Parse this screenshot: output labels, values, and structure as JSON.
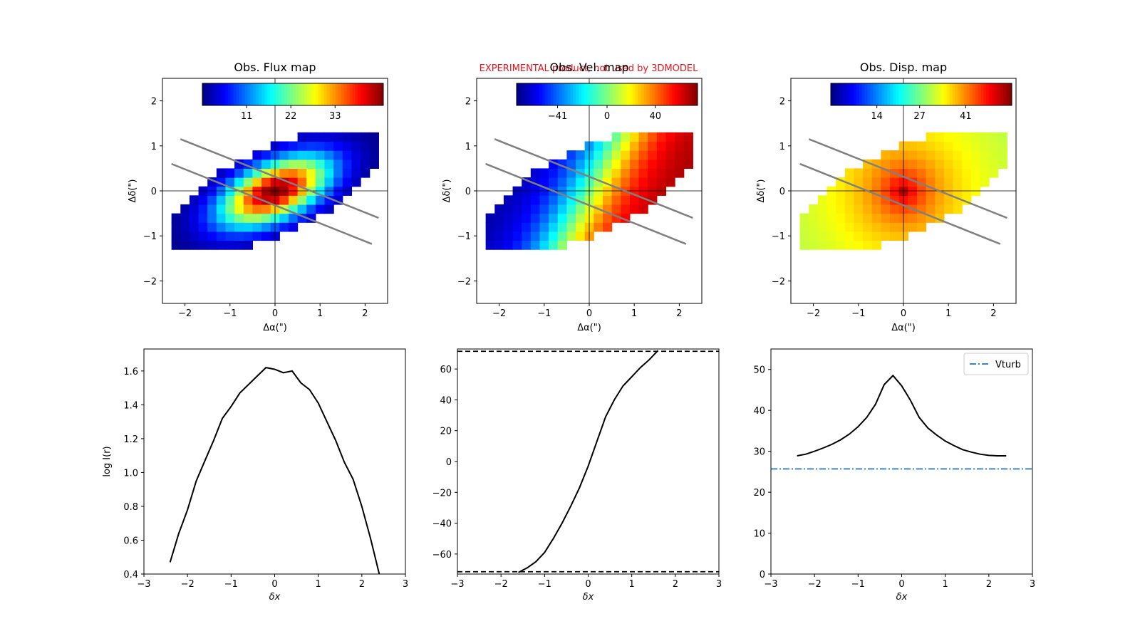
{
  "banner": "EXPERIMENTAL product, not used by 3DMODEL",
  "colors": {
    "banner": "#e8141c",
    "line": "#000000",
    "slit": "#808080",
    "vturb": "#1f77b4",
    "axes": "#000000"
  },
  "chart_data": [
    {
      "type": "heatmap",
      "title": "Obs. Flux map",
      "xlabel": "Δα(\")",
      "ylabel": "Δδ(\")",
      "xlim": [
        -2.5,
        2.5
      ],
      "ylim": [
        -2.5,
        2.5
      ],
      "xticks": [
        -2,
        -1,
        0,
        1,
        2
      ],
      "yticks": [
        -2,
        -1,
        0,
        1,
        2
      ],
      "colorbar": {
        "colormap": "jet",
        "ticks": [
          11,
          22,
          33
        ],
        "labels": [
          "11",
          "22",
          "33"
        ],
        "range": [
          0,
          45
        ]
      },
      "model": "flux",
      "slit_lines": [
        [
          [
            -2.1,
            1.15
          ],
          [
            2.3,
            -0.6
          ]
        ],
        [
          [
            -2.3,
            0.6
          ],
          [
            2.15,
            -1.18
          ]
        ]
      ]
    },
    {
      "type": "heatmap",
      "title": "Obs. Vel. map",
      "xlabel": "Δα(\")",
      "ylabel": "Δδ(\")",
      "xlim": [
        -2.5,
        2.5
      ],
      "ylim": [
        -2.5,
        2.5
      ],
      "xticks": [
        -2,
        -1,
        0,
        1,
        2
      ],
      "yticks": [
        -2,
        -1,
        0,
        1,
        2
      ],
      "colorbar": {
        "colormap": "jet",
        "ticks": [
          -41,
          0,
          40
        ],
        "labels": [
          "−41",
          "0",
          "40"
        ],
        "range": [
          -75,
          75
        ]
      },
      "model": "velocity",
      "slit_lines": [
        [
          [
            -2.1,
            1.15
          ],
          [
            2.3,
            -0.6
          ]
        ],
        [
          [
            -2.3,
            0.6
          ],
          [
            2.15,
            -1.18
          ]
        ]
      ]
    },
    {
      "type": "heatmap",
      "title": "Obs. Disp. map",
      "xlabel": "Δα(\")",
      "ylabel": "Δδ(\")",
      "xlim": [
        -2.5,
        2.5
      ],
      "ylim": [
        -2.5,
        2.5
      ],
      "xticks": [
        -2,
        -1,
        0,
        1,
        2
      ],
      "yticks": [
        -2,
        -1,
        0,
        1,
        2
      ],
      "colorbar": {
        "colormap": "jet",
        "ticks": [
          14,
          27,
          41
        ],
        "labels": [
          "14",
          "27",
          "41"
        ],
        "range": [
          0,
          55
        ]
      },
      "model": "dispersion",
      "slit_lines": [
        [
          [
            -2.1,
            1.15
          ],
          [
            2.3,
            -0.6
          ]
        ],
        [
          [
            -2.3,
            0.6
          ],
          [
            2.15,
            -1.18
          ]
        ]
      ]
    },
    {
      "type": "line",
      "xlabel": "δx",
      "ylabel": "log I(r)",
      "xlim": [
        -3,
        3
      ],
      "ylim": [
        0.4,
        1.73
      ],
      "xticks": [
        -3,
        -2,
        -1,
        0,
        1,
        2,
        3
      ],
      "yticks": [
        0.4,
        0.6,
        0.8,
        1.0,
        1.2,
        1.4,
        1.6
      ],
      "ytick_labels": [
        "0.4",
        "0.6",
        "0.8",
        "1.0",
        "1.2",
        "1.4",
        "1.6"
      ],
      "series": [
        {
          "x": [
            -2.4,
            -2.2,
            -2.0,
            -1.8,
            -1.6,
            -1.4,
            -1.2,
            -1.0,
            -0.8,
            -0.6,
            -0.4,
            -0.2,
            0.0,
            0.2,
            0.4,
            0.6,
            0.8,
            1.0,
            1.2,
            1.4,
            1.6,
            1.8,
            2.0,
            2.2,
            2.4
          ],
          "y": [
            0.47,
            0.64,
            0.78,
            0.95,
            1.07,
            1.19,
            1.32,
            1.39,
            1.47,
            1.52,
            1.57,
            1.62,
            1.61,
            1.59,
            1.6,
            1.53,
            1.49,
            1.41,
            1.3,
            1.19,
            1.06,
            0.96,
            0.8,
            0.61,
            0.4
          ]
        }
      ]
    },
    {
      "type": "line",
      "xlabel": "δx",
      "ylabel": "",
      "xlim": [
        -3,
        3
      ],
      "ylim": [
        -73,
        73
      ],
      "xticks": [
        -3,
        -2,
        -1,
        0,
        1,
        2,
        3
      ],
      "yticks": [
        -60,
        -40,
        -20,
        0,
        20,
        40,
        60
      ],
      "ytick_labels": [
        "−60",
        "−40",
        "−20",
        "0",
        "20",
        "40",
        "60"
      ],
      "series": [
        {
          "x": [
            -1.6,
            -1.4,
            -1.2,
            -1.0,
            -0.8,
            -0.6,
            -0.4,
            -0.2,
            0.0,
            0.2,
            0.4,
            0.6,
            0.8,
            1.0,
            1.2,
            1.4,
            1.6
          ],
          "y": [
            -72,
            -69,
            -65,
            -59,
            -50,
            -40,
            -29,
            -17,
            -3,
            13,
            29,
            40,
            49,
            55,
            61,
            66,
            72
          ]
        }
      ],
      "hlines": [
        71.5,
        -71.5
      ]
    },
    {
      "type": "line",
      "xlabel": "δx",
      "ylabel": "",
      "xlim": [
        -3,
        3
      ],
      "ylim": [
        0,
        55
      ],
      "xticks": [
        -3,
        -2,
        -1,
        0,
        1,
        2,
        3
      ],
      "yticks": [
        0,
        10,
        20,
        30,
        40,
        50
      ],
      "ytick_labels": [
        "0",
        "10",
        "20",
        "30",
        "40",
        "50"
      ],
      "series": [
        {
          "x": [
            -2.4,
            -2.2,
            -2.0,
            -1.8,
            -1.6,
            -1.4,
            -1.2,
            -1.0,
            -0.8,
            -0.6,
            -0.4,
            -0.2,
            0.0,
            0.2,
            0.4,
            0.6,
            0.8,
            1.0,
            1.2,
            1.4,
            1.6,
            1.8,
            2.0,
            2.2,
            2.4
          ],
          "y": [
            28.9,
            29.3,
            30.0,
            30.8,
            31.7,
            32.8,
            34.2,
            36.0,
            38.3,
            41.5,
            46.3,
            48.5,
            46.0,
            42.5,
            38.3,
            35.7,
            34.0,
            32.5,
            31.4,
            30.4,
            29.8,
            29.3,
            29.0,
            28.9,
            28.9
          ]
        }
      ],
      "vturb": 25.7,
      "legend": {
        "label": "Vturb",
        "loc": "upper-right"
      }
    }
  ]
}
